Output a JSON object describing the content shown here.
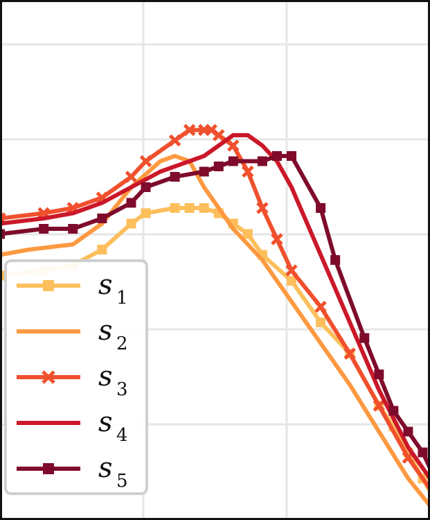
{
  "chart_data": {
    "type": "line",
    "title": "",
    "xlabel": "",
    "ylabel": "",
    "xlim": [
      0,
      29.5
    ],
    "ylim": [
      0,
      1
    ],
    "grid": true,
    "legend_position": "lower-left",
    "series": [
      {
        "name": "s",
        "sub": "1",
        "color": "#fdbf5c",
        "marker": "square",
        "x": [
          0,
          3,
          5,
          7,
          9,
          10,
          12,
          13,
          14,
          15,
          16,
          17,
          18,
          20,
          22,
          24,
          26,
          27,
          28,
          29,
          30
        ],
        "y": [
          0.47,
          0.48,
          0.49,
          0.52,
          0.57,
          0.59,
          0.6,
          0.6,
          0.6,
          0.59,
          0.57,
          0.55,
          0.51,
          0.46,
          0.38,
          0.32,
          0.22,
          0.18,
          0.13,
          0.08,
          0.03
        ]
      },
      {
        "name": "s",
        "sub": "2",
        "color": "#fd9940",
        "marker": "none",
        "x": [
          0,
          2,
          5,
          7,
          9,
          11,
          12,
          13,
          14,
          16,
          18,
          20,
          22,
          24,
          26,
          28,
          30
        ],
        "y": [
          0.51,
          0.52,
          0.53,
          0.57,
          0.64,
          0.69,
          0.7,
          0.69,
          0.64,
          0.56,
          0.5,
          0.42,
          0.34,
          0.26,
          0.17,
          0.08,
          0.01
        ]
      },
      {
        "name": "s",
        "sub": "3",
        "color": "#f0502d",
        "marker": "x",
        "x": [
          0,
          3,
          5,
          7,
          9,
          10,
          12,
          13,
          14,
          14.5,
          15,
          16,
          17,
          18,
          19,
          20,
          22,
          24,
          26,
          28,
          30
        ],
        "y": [
          0.58,
          0.59,
          0.6,
          0.62,
          0.66,
          0.69,
          0.73,
          0.75,
          0.75,
          0.75,
          0.74,
          0.72,
          0.67,
          0.6,
          0.54,
          0.48,
          0.41,
          0.32,
          0.22,
          0.12,
          0.04
        ]
      },
      {
        "name": "s",
        "sub": "4",
        "color": "#cb1829",
        "marker": "none",
        "x": [
          0,
          3,
          5,
          7,
          9,
          11,
          12,
          13,
          14,
          15,
          16,
          17,
          18,
          19,
          20,
          22,
          24,
          26,
          28,
          30
        ],
        "y": [
          0.57,
          0.58,
          0.59,
          0.61,
          0.64,
          0.67,
          0.68,
          0.69,
          0.7,
          0.72,
          0.74,
          0.74,
          0.72,
          0.69,
          0.64,
          0.51,
          0.38,
          0.25,
          0.14,
          0.06
        ]
      },
      {
        "name": "s",
        "sub": "5",
        "color": "#7e0b2b",
        "marker": "square",
        "x": [
          0,
          3,
          5,
          7,
          9,
          10,
          12,
          14,
          15,
          16,
          18,
          19,
          20,
          22,
          23,
          25,
          26,
          27,
          28,
          29,
          30
        ],
        "y": [
          0.55,
          0.56,
          0.56,
          0.58,
          0.61,
          0.64,
          0.66,
          0.67,
          0.68,
          0.69,
          0.69,
          0.7,
          0.7,
          0.6,
          0.5,
          0.35,
          0.28,
          0.21,
          0.17,
          0.13,
          0.07
        ]
      }
    ]
  }
}
